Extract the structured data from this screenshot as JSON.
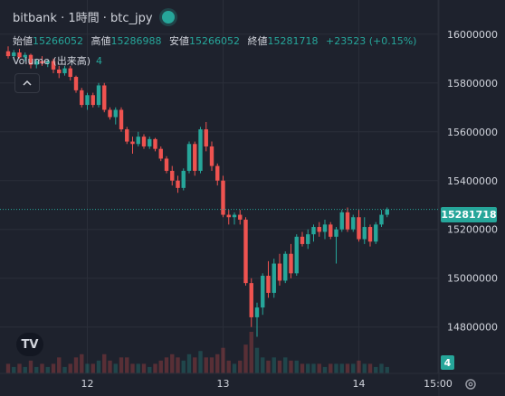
{
  "header": {
    "title": "bitbank · 1時間 · btc_jpy",
    "live_dot_color": "#26a69a"
  },
  "ohlc": {
    "open_label": "始値",
    "open": "15266052",
    "high_label": "高値",
    "high": "15286988",
    "low_label": "安値",
    "low": "15266052",
    "close_label": "終値",
    "close": "15281718",
    "change": "+23523 (+0.15%)"
  },
  "volume": {
    "label": "Volume (出来高)",
    "value": "4"
  },
  "controls": {
    "collapse_icon": "chevron-up-icon",
    "logo_text": "TV"
  },
  "price_tag": "15281718",
  "volume_tag": "4",
  "colors": {
    "up": "#26a69a",
    "down": "#ef5350",
    "background": "#1e222d",
    "grid": "#2a2e39",
    "axis_text": "#d1d4dc"
  },
  "chart_data": {
    "type": "candlestick",
    "title": "",
    "xlabel": "",
    "ylabel": "",
    "y_ticks": [
      14800000,
      15000000,
      15200000,
      15400000,
      15600000,
      15800000,
      16000000
    ],
    "y_tick_labels": [
      "14800000",
      "15000000",
      "15200000",
      "15400000",
      "15600000",
      "15800000",
      "16000000"
    ],
    "ylim": [
      14610000,
      16140000
    ],
    "x_ticks": [
      {
        "index": 14,
        "label": "12"
      },
      {
        "index": 38,
        "label": "13"
      },
      {
        "index": 62,
        "label": "14"
      },
      {
        "index": 76,
        "label": "15:00"
      }
    ],
    "last_price": 15281718,
    "candles": [
      [
        15930000,
        15950000,
        15900000,
        15910000,
        3
      ],
      [
        15910000,
        15935000,
        15895000,
        15925000,
        2
      ],
      [
        15925000,
        15940000,
        15900000,
        15905000,
        3
      ],
      [
        15905000,
        15925000,
        15890000,
        15915000,
        2
      ],
      [
        15915000,
        15920000,
        15860000,
        15875000,
        4
      ],
      [
        15875000,
        15900000,
        15860000,
        15890000,
        2
      ],
      [
        15890000,
        15910000,
        15870000,
        15880000,
        3
      ],
      [
        15880000,
        15895000,
        15865000,
        15890000,
        2
      ],
      [
        15890000,
        15900000,
        15840000,
        15855000,
        3
      ],
      [
        15855000,
        15870000,
        15820000,
        15840000,
        5
      ],
      [
        15840000,
        15870000,
        15830000,
        15860000,
        2
      ],
      [
        15860000,
        15870000,
        15810000,
        15825000,
        3
      ],
      [
        15825000,
        15830000,
        15760000,
        15770000,
        5
      ],
      [
        15770000,
        15780000,
        15700000,
        15710000,
        6
      ],
      [
        15710000,
        15760000,
        15690000,
        15750000,
        3
      ],
      [
        15750000,
        15760000,
        15700000,
        15710000,
        3
      ],
      [
        15710000,
        15800000,
        15700000,
        15790000,
        4
      ],
      [
        15790000,
        15800000,
        15680000,
        15690000,
        6
      ],
      [
        15690000,
        15700000,
        15650000,
        15660000,
        4
      ],
      [
        15660000,
        15700000,
        15630000,
        15690000,
        3
      ],
      [
        15690000,
        15700000,
        15600000,
        15610000,
        5
      ],
      [
        15610000,
        15620000,
        15550000,
        15560000,
        5
      ],
      [
        15560000,
        15580000,
        15510000,
        15550000,
        3
      ],
      [
        15550000,
        15600000,
        15540000,
        15580000,
        3
      ],
      [
        15580000,
        15590000,
        15530000,
        15540000,
        3
      ],
      [
        15540000,
        15580000,
        15530000,
        15570000,
        2
      ],
      [
        15570000,
        15575000,
        15520000,
        15530000,
        3
      ],
      [
        15530000,
        15540000,
        15480000,
        15490000,
        4
      ],
      [
        15490000,
        15500000,
        15430000,
        15440000,
        5
      ],
      [
        15440000,
        15460000,
        15380000,
        15400000,
        6
      ],
      [
        15400000,
        15420000,
        15350000,
        15370000,
        5
      ],
      [
        15370000,
        15450000,
        15360000,
        15440000,
        4
      ],
      [
        15440000,
        15560000,
        15430000,
        15550000,
        6
      ],
      [
        15550000,
        15560000,
        15420000,
        15440000,
        5
      ],
      [
        15440000,
        15620000,
        15430000,
        15610000,
        7
      ],
      [
        15610000,
        15640000,
        15520000,
        15540000,
        5
      ],
      [
        15540000,
        15560000,
        15440000,
        15460000,
        5
      ],
      [
        15460000,
        15470000,
        15380000,
        15400000,
        6
      ],
      [
        15400000,
        15420000,
        15250000,
        15260000,
        8
      ],
      [
        15260000,
        15280000,
        15220000,
        15250000,
        4
      ],
      [
        15250000,
        15270000,
        15220000,
        15260000,
        3
      ],
      [
        15260000,
        15280000,
        15220000,
        15240000,
        4
      ],
      [
        15240000,
        15250000,
        14970000,
        14980000,
        9
      ],
      [
        14980000,
        15000000,
        14800000,
        14840000,
        13
      ],
      [
        14840000,
        14900000,
        14760000,
        14880000,
        8
      ],
      [
        14880000,
        15020000,
        14850000,
        15010000,
        5
      ],
      [
        15010000,
        15070000,
        14920000,
        14940000,
        4
      ],
      [
        14940000,
        15080000,
        14920000,
        15060000,
        5
      ],
      [
        15060000,
        15100000,
        14970000,
        14990000,
        4
      ],
      [
        14990000,
        15110000,
        14980000,
        15100000,
        5
      ],
      [
        15100000,
        15140000,
        15000000,
        15020000,
        4
      ],
      [
        15020000,
        15180000,
        15010000,
        15170000,
        4
      ],
      [
        15170000,
        15190000,
        15130000,
        15140000,
        3
      ],
      [
        15140000,
        15200000,
        15120000,
        15180000,
        3
      ],
      [
        15180000,
        15220000,
        15150000,
        15210000,
        3
      ],
      [
        15210000,
        15230000,
        15170000,
        15190000,
        3
      ],
      [
        15190000,
        15240000,
        15160000,
        15220000,
        2
      ],
      [
        15220000,
        15230000,
        15160000,
        15170000,
        3
      ],
      [
        15170000,
        15210000,
        15060000,
        15200000,
        3
      ],
      [
        15200000,
        15280000,
        15190000,
        15270000,
        3
      ],
      [
        15270000,
        15290000,
        15190000,
        15200000,
        3
      ],
      [
        15200000,
        15260000,
        15190000,
        15250000,
        3
      ],
      [
        15250000,
        15280000,
        15150000,
        15160000,
        4
      ],
      [
        15160000,
        15250000,
        15140000,
        15210000,
        3
      ],
      [
        15210000,
        15220000,
        15130000,
        15150000,
        3
      ],
      [
        15150000,
        15230000,
        15140000,
        15220000,
        2
      ],
      [
        15220000,
        15280000,
        15210000,
        15260000,
        3
      ],
      [
        15260000,
        15290000,
        15250000,
        15282000,
        2
      ]
    ]
  }
}
